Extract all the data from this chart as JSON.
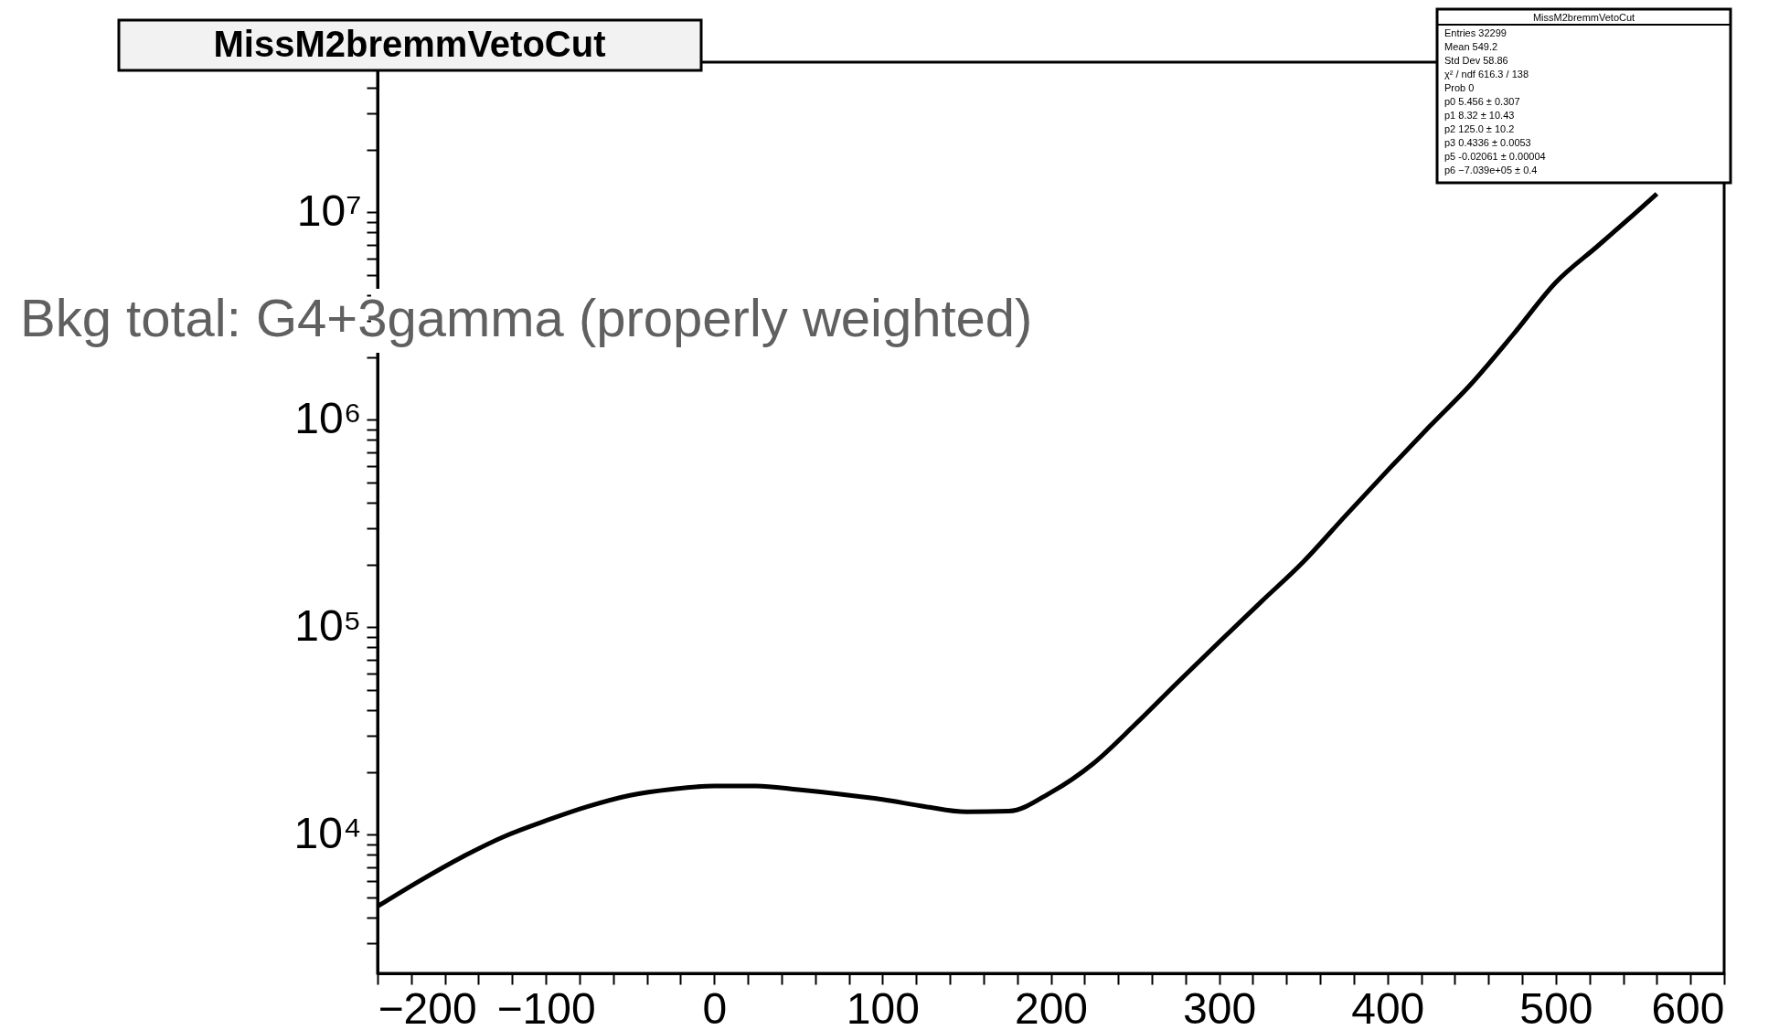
{
  "chart_data": {
    "type": "line",
    "title": "MissM2bremmVetoCut",
    "x": [
      -200,
      -175,
      -150,
      -125,
      -100,
      -75,
      -50,
      -25,
      0,
      25,
      50,
      75,
      100,
      125,
      150,
      175,
      200,
      225,
      250,
      275,
      300,
      325,
      350,
      375,
      400,
      425,
      450,
      475,
      500,
      525,
      550,
      560
    ],
    "series": [
      {
        "color": "#000000",
        "values": [
          4520,
          6000,
          7800,
          9800,
          11700,
          13700,
          15500,
          16600,
          17200,
          17200,
          16500,
          15700,
          14800,
          13700,
          12900,
          13000,
          16000,
          22000,
          34000,
          54000,
          85000,
          133000,
          207000,
          345000,
          570000,
          930000,
          1500000,
          2600000,
          4600000,
          6900000,
          10400000,
          12300000
        ]
      }
    ],
    "xlim": [
      -200,
      600
    ],
    "xticks": [
      -200,
      {
        "value": -180,
        "label": null
      },
      {
        "value": -160,
        "label": null
      },
      {
        "value": -140,
        "label": null
      },
      {
        "value": -120,
        "label": null
      },
      -100,
      {
        "value": -80,
        "label": null
      },
      {
        "value": -60,
        "label": null
      },
      {
        "value": -40,
        "label": null
      },
      {
        "value": -20,
        "label": null
      },
      0,
      {
        "value": 20,
        "label": null
      },
      {
        "value": 40,
        "label": null
      },
      {
        "value": 60,
        "label": null
      },
      {
        "value": 80,
        "label": null
      },
      100,
      {
        "value": 120,
        "label": null
      },
      {
        "value": 140,
        "label": null
      },
      {
        "value": 160,
        "label": null
      },
      {
        "value": 180,
        "label": null
      },
      200,
      {
        "value": 220,
        "label": null
      },
      {
        "value": 240,
        "label": null
      },
      {
        "value": 260,
        "label": null
      },
      {
        "value": 280,
        "label": null
      },
      300,
      {
        "value": 320,
        "label": null
      },
      {
        "value": 340,
        "label": null
      },
      {
        "value": 360,
        "label": null
      },
      {
        "value": 380,
        "label": null
      },
      400,
      {
        "value": 420,
        "label": null
      },
      {
        "value": 440,
        "label": null
      },
      {
        "value": 460,
        "label": null
      },
      {
        "value": 480,
        "label": null
      },
      500,
      {
        "value": 520,
        "label": null
      },
      {
        "value": 540,
        "label": null
      },
      {
        "value": 560,
        "label": null
      },
      {
        "value": 580,
        "label": null
      },
      600
    ],
    "ylim": [
      2150,
      53000000
    ],
    "yticks": [
      {
        "value": 3000,
        "label": null
      },
      {
        "value": 4000,
        "label": null
      },
      {
        "value": 5000,
        "label": null
      },
      {
        "value": 6000,
        "label": null
      },
      {
        "value": 7000,
        "label": null
      },
      {
        "value": 8000,
        "label": null
      },
      {
        "value": 9000,
        "label": null
      },
      {
        "value": 10000,
        "label": "10⁴"
      },
      {
        "value": 20000,
        "label": null
      },
      {
        "value": 30000,
        "label": null
      },
      {
        "value": 40000,
        "label": null
      },
      {
        "value": 50000,
        "label": null
      },
      {
        "value": 60000,
        "label": null
      },
      {
        "value": 70000,
        "label": null
      },
      {
        "value": 80000,
        "label": null
      },
      {
        "value": 90000,
        "label": null
      },
      {
        "value": 100000,
        "label": "10⁵"
      },
      {
        "value": 200000,
        "label": null
      },
      {
        "value": 300000,
        "label": null
      },
      {
        "value": 400000,
        "label": null
      },
      {
        "value": 500000,
        "label": null
      },
      {
        "value": 600000,
        "label": null
      },
      {
        "value": 700000,
        "label": null
      },
      {
        "value": 800000,
        "label": null
      },
      {
        "value": 900000,
        "label": null
      },
      {
        "value": 1000000,
        "label": "10⁶"
      },
      {
        "value": 2000000,
        "label": null
      },
      {
        "value": 3000000,
        "label": null
      },
      {
        "value": 4000000,
        "label": null
      },
      {
        "value": 5000000,
        "label": null
      },
      {
        "value": 6000000,
        "label": null
      },
      {
        "value": 7000000,
        "label": null
      },
      {
        "value": 8000000,
        "label": null
      },
      {
        "value": 9000000,
        "label": null
      },
      {
        "value": 10000000,
        "label": "10⁷"
      },
      {
        "value": 20000000,
        "label": null
      },
      {
        "value": 30000000,
        "label": null
      },
      {
        "value": 40000000,
        "label": null
      },
      {
        "value": 50000000,
        "label": null
      }
    ],
    "log": true,
    "grid": false,
    "marker": "none",
    "line_style": "solid",
    "annotations": [
      "Bkg total:  G4+3gamma (properly weighted)",
      "Entries  32299",
      "Mean  549.2",
      "Std Dev  58.86",
      "χ² / ndf  616.3 / 138",
      "Prob  0",
      "p0  5.456 ± 0.307",
      "p1  8.32 ± 10.43",
      "p2  125.0 ± 10.2",
      "p3  0.4336 ± 0.0053",
      "p5  -0.02061 ± 0.00004",
      "p6  −7.039e+05 ± 0.4"
    ]
  }
}
